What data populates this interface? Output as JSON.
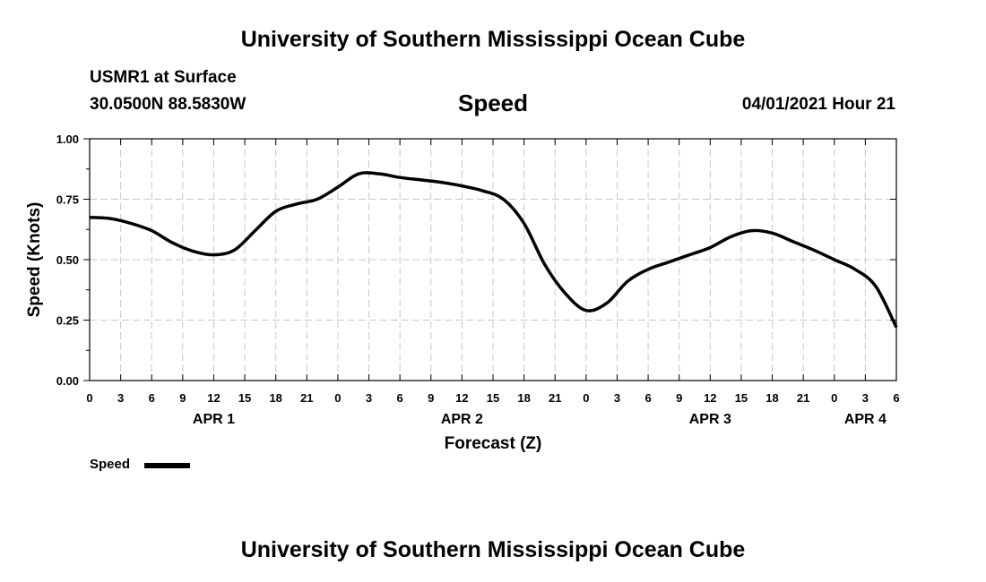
{
  "header": {
    "top_title": "University of Southern Mississippi Ocean Cube",
    "station": "USMR1 at Surface",
    "location": "30.0500N  88.5830W",
    "variable": "Speed",
    "datetime": "04/01/2021 Hour 21"
  },
  "footer": {
    "bottom_title": "University of Southern Mississippi Ocean Cube"
  },
  "legend": {
    "label": "Speed",
    "color": "#000000"
  },
  "chart_data": {
    "type": "line",
    "title": "Speed",
    "xlabel": "Forecast (Z)",
    "ylabel": "Speed (Knots)",
    "xlim": [
      0,
      78
    ],
    "ylim": [
      0,
      1
    ],
    "grid": true,
    "yticks": [
      "0.00",
      "0.25",
      "0.50",
      "0.75",
      "1.00"
    ],
    "xticks": [
      "0",
      "3",
      "6",
      "9",
      "12",
      "15",
      "18",
      "21",
      "0",
      "3",
      "6",
      "9",
      "12",
      "15",
      "18",
      "21",
      "0",
      "3",
      "6",
      "9",
      "12",
      "15",
      "18",
      "21",
      "0",
      "3",
      "6"
    ],
    "day_labels": [
      {
        "label": "APR 1",
        "hour": 12
      },
      {
        "label": "APR 2",
        "hour": 36
      },
      {
        "label": "APR 3",
        "hour": 60
      },
      {
        "label": "APR 4",
        "hour": 75
      }
    ],
    "series": [
      {
        "name": "Speed",
        "color": "#000000",
        "x": [
          0,
          2,
          4,
          6,
          8,
          10,
          12,
          14,
          16,
          18,
          20,
          22,
          24,
          26,
          28,
          30,
          32,
          34,
          36,
          38,
          40,
          42,
          44,
          46,
          48,
          50,
          52,
          54,
          56,
          58,
          60,
          62,
          64,
          66,
          68,
          70,
          72,
          74,
          76,
          78
        ],
        "values": [
          0.675,
          0.67,
          0.65,
          0.62,
          0.57,
          0.535,
          0.52,
          0.54,
          0.62,
          0.7,
          0.73,
          0.75,
          0.8,
          0.855,
          0.855,
          0.84,
          0.83,
          0.82,
          0.805,
          0.785,
          0.75,
          0.65,
          0.48,
          0.36,
          0.29,
          0.32,
          0.41,
          0.46,
          0.49,
          0.52,
          0.55,
          0.595,
          0.62,
          0.61,
          0.575,
          0.54,
          0.5,
          0.46,
          0.39,
          0.22
        ]
      }
    ]
  }
}
